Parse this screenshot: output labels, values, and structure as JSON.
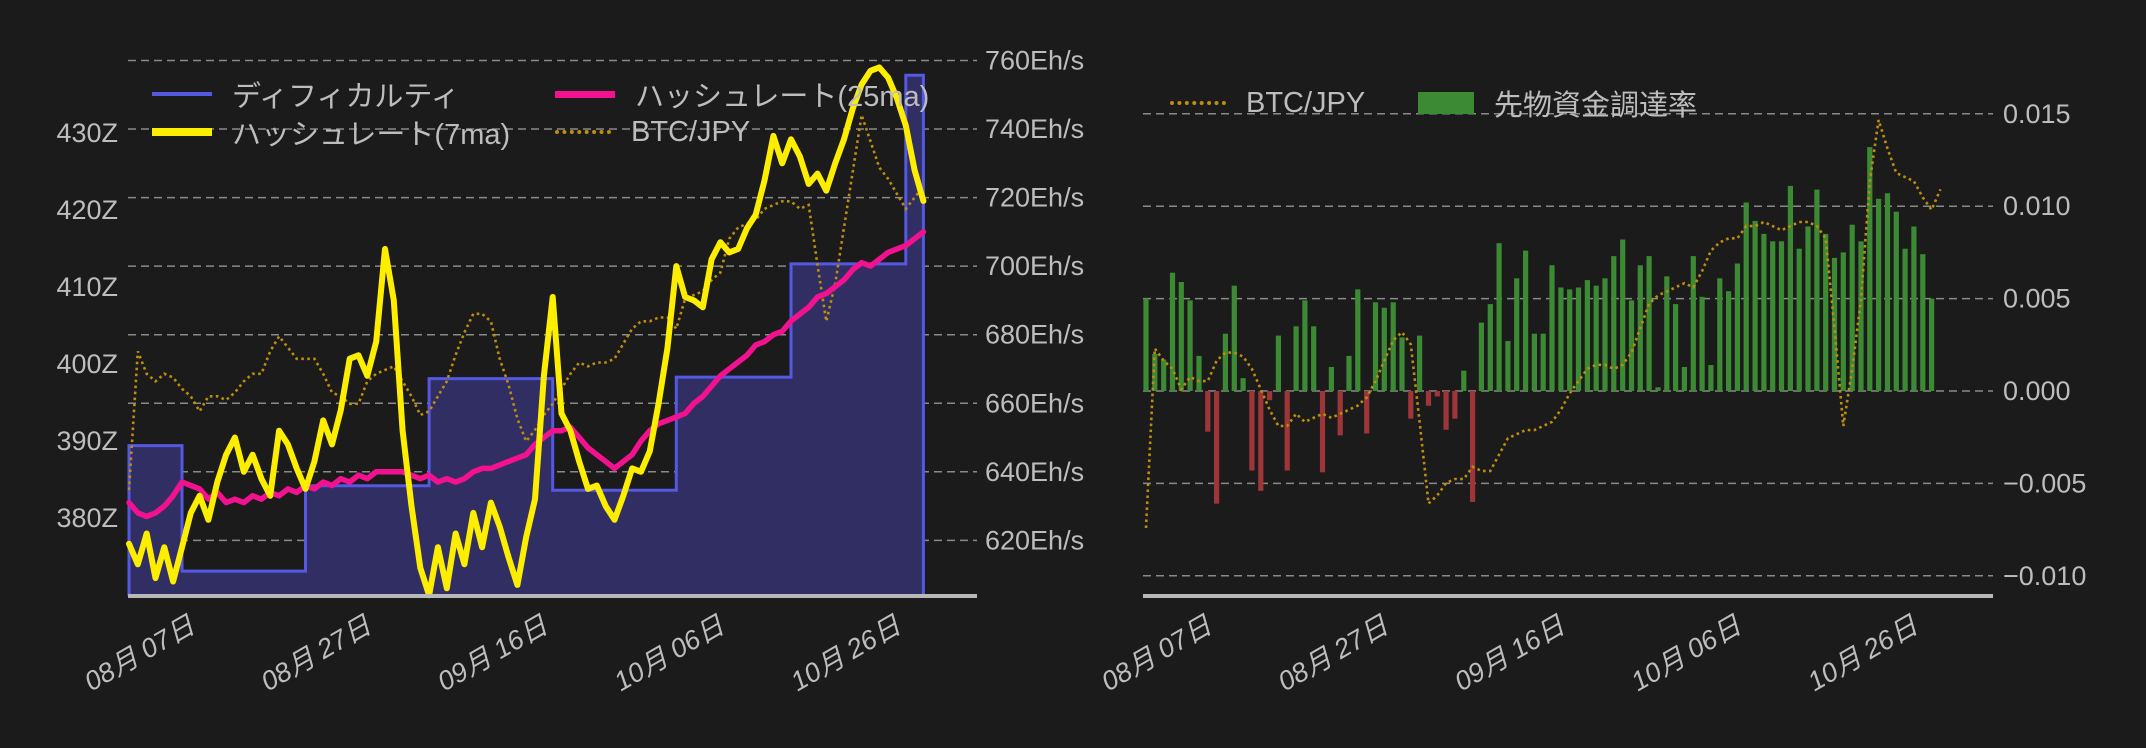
{
  "app": {
    "background": "#1b1b1b",
    "text_color": "#bdbdbd",
    "grid_color": "#e6e6e6",
    "axis_line_color": "#b8b8b8"
  },
  "chart_data": [
    {
      "type": "line",
      "panel": "left",
      "title": "",
      "legend": {
        "difficulty": "ディフィカルティ",
        "hashrate_7ma": "ハッシュレート(7ma)",
        "hashrate_25ma": "ハッシュレート(25ma)",
        "btc_jpy": "BTC/JPY"
      },
      "colors": {
        "difficulty_fill": "#312e63",
        "difficulty_line": "#5558e0",
        "hashrate_7ma": "#fdee00",
        "hashrate_25ma": "#f2128f",
        "btc_jpy": "#bd8d0e"
      },
      "y_axis_left": {
        "unit": "Z",
        "tick_labels": [
          "430Z",
          "420Z",
          "410Z",
          "400Z",
          "390Z",
          "380Z"
        ],
        "tick_values": [
          430,
          420,
          410,
          400,
          390,
          380
        ]
      },
      "y_axis_right": {
        "unit": "Eh/s",
        "tick_labels": [
          "760Eh/s",
          "740Eh/s",
          "720Eh/s",
          "700Eh/s",
          "680Eh/s",
          "660Eh/s",
          "640Eh/s",
          "620Eh/s"
        ],
        "tick_values": [
          760,
          740,
          720,
          700,
          680,
          660,
          640,
          620
        ]
      },
      "x_axis": {
        "tick_labels": [
          "08月 07日",
          "08月 27日",
          "09月 16日",
          "10月 06日",
          "10月 26日"
        ],
        "tick_days": [
          8,
          28,
          48,
          68,
          88
        ]
      },
      "series": {
        "difficulty_steps": {
          "break_days": [
            0,
            6,
            20,
            34,
            48,
            62,
            75,
            88,
            90
          ],
          "values_Z": [
            389.4,
            373.1,
            384.2,
            398.1,
            383.6,
            398.3,
            413.0,
            437.5
          ]
        },
        "hashrate_7ma_ehs": [
          619,
          613,
          622,
          609,
          618,
          608,
          618,
          628,
          633,
          626,
          637,
          645,
          650,
          640,
          645,
          638,
          633,
          652,
          648,
          641,
          635,
          643,
          655,
          648,
          658,
          673,
          674,
          668,
          678,
          705,
          690,
          652,
          630,
          612,
          604,
          618,
          606,
          622,
          613,
          628,
          618,
          631,
          624,
          615,
          607,
          621,
          632,
          668,
          691,
          657,
          652,
          643,
          635,
          636,
          630,
          626,
          633,
          641,
          640,
          646,
          660,
          676,
          700,
          691,
          690,
          688,
          702,
          707,
          704,
          705,
          711,
          715,
          725,
          738,
          730,
          737,
          732,
          724,
          727,
          722,
          730,
          737,
          746,
          753,
          757,
          758,
          755,
          749,
          741,
          728,
          719
        ],
        "hashrate_25ma_ehs": [
          631,
          628,
          627,
          628,
          630,
          633,
          637,
          636,
          635,
          632,
          634,
          631,
          632,
          631,
          633,
          632,
          634,
          633,
          635,
          634,
          636,
          635,
          637,
          636,
          638,
          637,
          639,
          638,
          640,
          640,
          640,
          640,
          639,
          638,
          639,
          637,
          638,
          637,
          638,
          640,
          641,
          641,
          642,
          643,
          644,
          645,
          648,
          650,
          652,
          652,
          653,
          650,
          647,
          645,
          643,
          641,
          643,
          645,
          649,
          652,
          654,
          655,
          656,
          657,
          660,
          662,
          665,
          668,
          670,
          672,
          674,
          677,
          678,
          680,
          681,
          684,
          686,
          688,
          691,
          692,
          694,
          696,
          699,
          701,
          700,
          702,
          704,
          705,
          706,
          708,
          710
        ],
        "btc_jpy_relative": [
          0,
          37,
          31,
          29,
          31,
          30,
          27,
          25,
          21,
          25,
          25,
          24,
          26,
          29,
          31,
          31,
          37,
          41,
          38,
          35,
          35,
          35,
          31,
          26,
          25,
          23,
          23,
          29,
          31,
          32,
          33,
          29,
          25,
          20,
          21,
          25,
          29,
          36,
          42,
          47,
          47,
          45,
          35,
          28,
          19,
          13,
          16,
          20,
          23,
          27,
          31,
          34,
          33,
          34,
          34,
          35,
          39,
          43,
          45,
          45,
          46,
          46,
          43,
          51,
          52,
          53,
          56,
          58,
          67,
          70,
          71,
          72,
          75,
          76,
          77,
          77,
          75,
          76,
          60,
          45,
          55,
          70,
          85,
          100,
          93,
          86,
          83,
          79,
          75,
          78,
          81
        ]
      }
    },
    {
      "type": "bar",
      "panel": "right",
      "title": "",
      "legend": {
        "btc_jpy": "BTC/JPY",
        "funding": "先物資金調達率"
      },
      "colors": {
        "positive": "#3c8a33",
        "negative": "#9e3538",
        "btc_jpy": "#bd8d0e"
      },
      "y_axis_right": {
        "tick_labels": [
          "0.015",
          "0.010",
          "0.005",
          "0.000",
          "−0.005",
          "−0.010"
        ],
        "tick_values": [
          0.015,
          0.01,
          0.005,
          0.0,
          -0.005,
          -0.01
        ]
      },
      "x_axis": {
        "tick_labels": [
          "08月 07日",
          "08月 27日",
          "09月 16日",
          "10月 06日",
          "10月 26日"
        ],
        "tick_days": [
          8,
          28,
          48,
          68,
          88
        ]
      },
      "series": {
        "funding_rate": [
          0.005,
          0.002,
          0.0017,
          0.0064,
          0.0059,
          0.0049,
          0.0019,
          -0.0022,
          -0.0061,
          0.0031,
          0.0057,
          0.0007,
          -0.0043,
          -0.0054,
          -0.0005,
          0.003,
          -0.0043,
          0.0035,
          0.0049,
          0.0035,
          -0.0044,
          0.0013,
          -0.0024,
          0.0019,
          0.0055,
          -0.0023,
          0.0048,
          0.0045,
          0.0048,
          0.0029,
          -0.0015,
          0.003,
          -0.0008,
          -0.0003,
          -0.0021,
          -0.0015,
          0.0011,
          -0.006,
          0.0037,
          0.0047,
          0.008,
          0.0027,
          0.0061,
          0.0076,
          0.0031,
          0.0031,
          0.0068,
          0.0056,
          0.0055,
          0.0056,
          0.006,
          0.0057,
          0.0061,
          0.0073,
          0.0082,
          0.0049,
          0.0068,
          0.0073,
          0.0002,
          0.0062,
          0.0047,
          0.0013,
          0.0073,
          0.0051,
          0.0014,
          0.0061,
          0.0054,
          0.0069,
          0.0102,
          0.0092,
          0.0085,
          0.0081,
          0.0081,
          0.0111,
          0.0077,
          0.0089,
          0.0109,
          0.0085,
          0.0072,
          0.0075,
          0.009,
          0.0081,
          0.0132,
          0.0104,
          0.0107,
          0.0097,
          0.0077,
          0.0089,
          0.0074,
          0.005
        ],
        "btc_jpy_relative": [
          0,
          44,
          41,
          39,
          34,
          37,
          36,
          36,
          41,
          43,
          43,
          42,
          39,
          34,
          29,
          25,
          25,
          28,
          26,
          27,
          28,
          27,
          28,
          29,
          30,
          32,
          36,
          41,
          46,
          48,
          45,
          26,
          6,
          8,
          11,
          12,
          12,
          15,
          14,
          14,
          18,
          22,
          23,
          24,
          24,
          25,
          26,
          29,
          33,
          36,
          39,
          40,
          40,
          39,
          40,
          43,
          49,
          55,
          57,
          58,
          59,
          60,
          59,
          63,
          68,
          70,
          71,
          71,
          74,
          74,
          75,
          74,
          73,
          74,
          75,
          75,
          74,
          71,
          49,
          25,
          39,
          56,
          85,
          100,
          93,
          87,
          86,
          85,
          81,
          78,
          83
        ]
      }
    }
  ]
}
